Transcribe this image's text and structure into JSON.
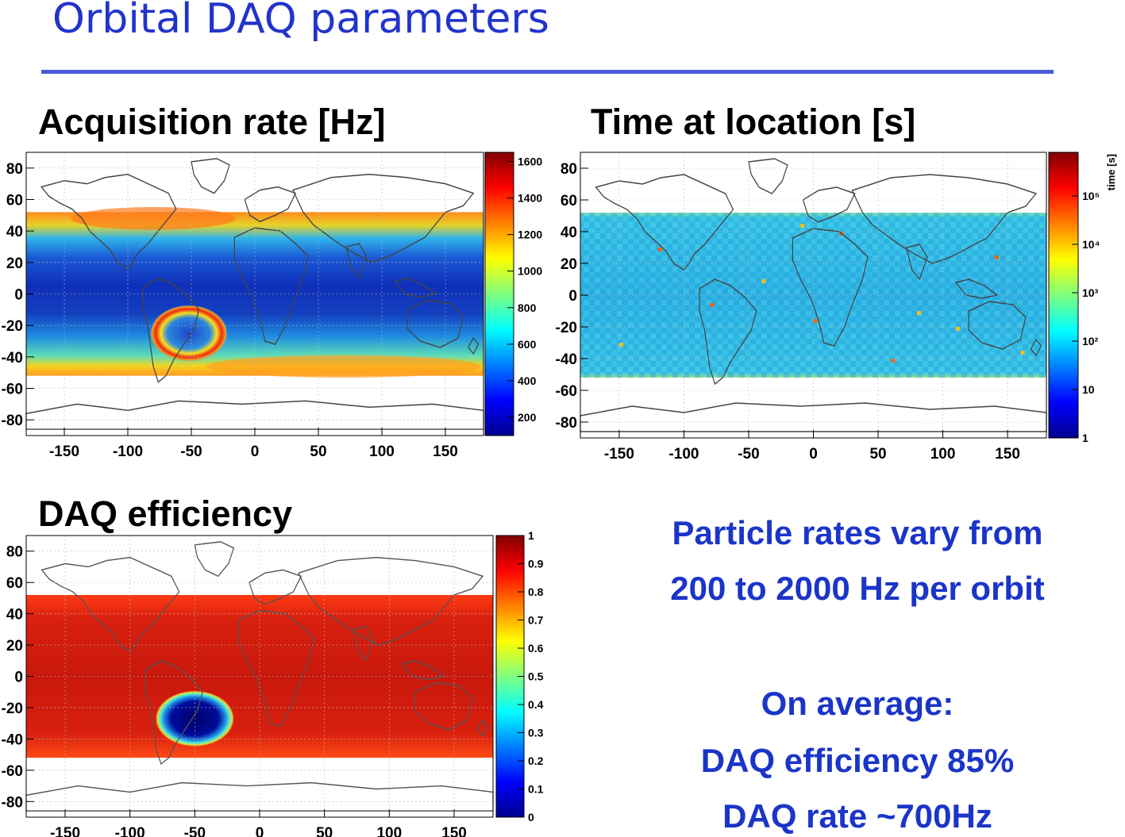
{
  "slide": {
    "title": "Orbital DAQ parameters"
  },
  "panels": {
    "rate": {
      "title": "Acquisition rate [Hz]",
      "z_axis_label": "",
      "z_ticks": [
        "200",
        "400",
        "600",
        "800",
        "1000",
        "1200",
        "1400",
        "1600"
      ]
    },
    "time": {
      "title": "Time at location [s]",
      "z_axis_label": "time [s]",
      "z_ticks": [
        "1",
        "10",
        "10²",
        "10³",
        "10⁴",
        "10⁵"
      ]
    },
    "efficiency": {
      "title": "DAQ efficiency",
      "z_axis_label": "",
      "z_ticks": [
        "0",
        "0.1",
        "0.2",
        "0.3",
        "0.4",
        "0.5",
        "0.6",
        "0.7",
        "0.8",
        "0.9",
        "1"
      ]
    }
  },
  "axes": {
    "x_ticks": [
      "-150",
      "-100",
      "-50",
      "0",
      "50",
      "100",
      "150"
    ],
    "y_ticks": [
      "80",
      "60",
      "40",
      "20",
      "0",
      "-20",
      "-40",
      "-60",
      "-80"
    ]
  },
  "summary": {
    "line1": "Particle rates vary from",
    "line2": "200 to 2000 Hz per orbit",
    "line3": "On average:",
    "line4": "DAQ efficiency 85%",
    "line5": "DAQ rate ~700Hz"
  },
  "chart_data": [
    {
      "type": "heatmap",
      "title": "Acquisition rate [Hz]",
      "x_range": [
        -180,
        180
      ],
      "y_range": [
        -90,
        90
      ],
      "z_range": [
        100,
        1650
      ],
      "band_latitude": [
        -52,
        52
      ],
      "features": [
        "South Atlantic Anomaly ring ~1500 Hz near lon -60, lat -25",
        "high rates ~1300 Hz near lat +/-50"
      ]
    },
    {
      "type": "heatmap",
      "title": "Time at location [s]",
      "x_range": [
        -180,
        180
      ],
      "y_range": [
        -90,
        90
      ],
      "z_range": [
        1,
        1000000
      ],
      "z_scale": "log",
      "band_latitude": [
        -52,
        52
      ],
      "z_axis_label": "time [s]"
    },
    {
      "type": "heatmap",
      "title": "DAQ efficiency",
      "x_range": [
        -180,
        180
      ],
      "y_range": [
        -90,
        90
      ],
      "z_range": [
        0,
        1
      ],
      "band_latitude": [
        -52,
        52
      ],
      "features": [
        "efficiency ~0.9 over most of the band",
        "drop to ~0.05 in South Atlantic Anomaly"
      ]
    }
  ],
  "colors": {
    "title": "#2233cc",
    "rule": "#4a5cd6",
    "summary": "#1a35c8"
  }
}
